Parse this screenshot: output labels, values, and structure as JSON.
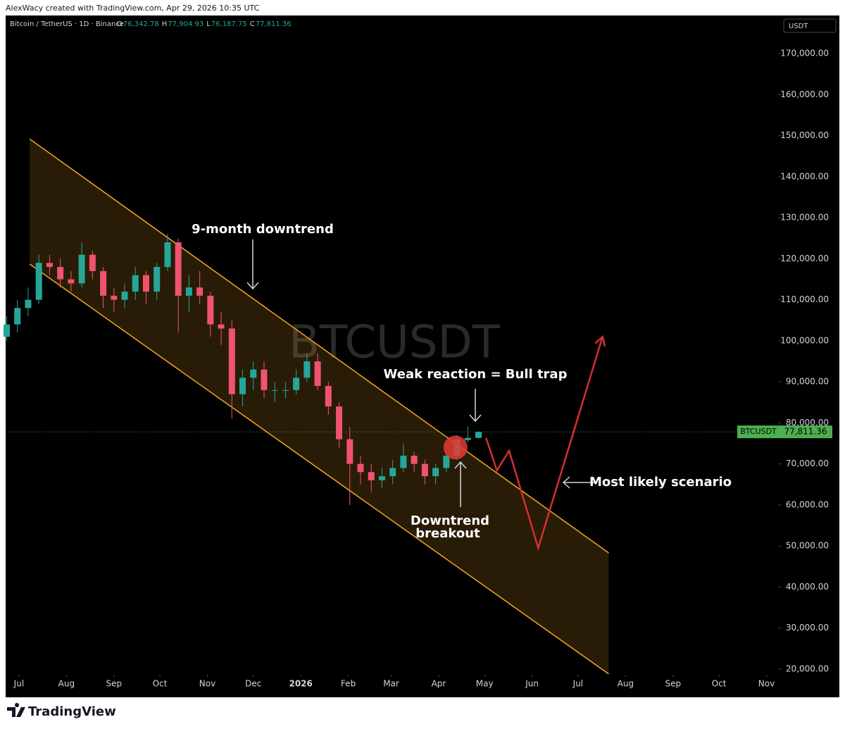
{
  "header": {
    "credit": "AlexWacy created with TradingView.com, Apr 29, 2026 10:35 UTC"
  },
  "chart_data": {
    "type": "candlestick",
    "title": "Bitcoin / TetherUS · 1D · Binance",
    "ohlc": [
      {
        "key": "O",
        "value": "76,342.78"
      },
      {
        "key": "H",
        "value": "77,904.93"
      },
      {
        "key": "L",
        "value": "76,187.75"
      },
      {
        "key": "C",
        "value": "77,811.36"
      }
    ],
    "currency": "USDT",
    "watermark": "BTCUSDT",
    "up_color": "#26a69a",
    "down_color": "#ef5370",
    "x": [
      -8,
      -1,
      6,
      13,
      20,
      27,
      34,
      41,
      48,
      55,
      62,
      69,
      76,
      83,
      90,
      97,
      104,
      111,
      118,
      125,
      132,
      139,
      146,
      153,
      160,
      167,
      174,
      181,
      188,
      195,
      202,
      209,
      216,
      223,
      230,
      237,
      244,
      251,
      258,
      265,
      272,
      279,
      286,
      293,
      300
    ],
    "open": [
      101000,
      104000,
      108000,
      110000,
      119000,
      118000,
      115000,
      114000,
      121000,
      117000,
      111000,
      110000,
      112000,
      116000,
      112000,
      118000,
      124000,
      111000,
      113000,
      111000,
      104000,
      103000,
      87000,
      91000,
      93000,
      88000,
      88000,
      88000,
      91000,
      95000,
      89000,
      84000,
      76000,
      70000,
      68000,
      66000,
      67000,
      69000,
      72000,
      70000,
      67000,
      69000,
      72000,
      75800,
      76342.78
    ],
    "high": [
      106000,
      110000,
      113000,
      121000,
      121000,
      120000,
      117000,
      124000,
      122000,
      118000,
      113000,
      114000,
      118000,
      117000,
      119000,
      126000,
      125000,
      116000,
      117000,
      112000,
      107000,
      105000,
      93000,
      95000,
      95000,
      90000,
      90000,
      93000,
      97000,
      97000,
      90000,
      85000,
      79000,
      72000,
      70000,
      69000,
      71000,
      75000,
      73000,
      71000,
      70000,
      73000,
      77000,
      79100,
      77904.93
    ],
    "low": [
      100000,
      102000,
      106000,
      109000,
      116000,
      113000,
      112000,
      113000,
      115000,
      108000,
      107000,
      108000,
      110000,
      109000,
      110000,
      117000,
      102000,
      107000,
      109000,
      101000,
      99000,
      81000,
      84000,
      88000,
      86000,
      85000,
      86000,
      87000,
      90000,
      88000,
      82000,
      74000,
      60000,
      65000,
      63000,
      64000,
      65000,
      68000,
      68000,
      65000,
      65000,
      68000,
      71000,
      75200,
      76187.75
    ],
    "close": [
      104000,
      108000,
      110000,
      119000,
      118000,
      115000,
      114000,
      121000,
      117000,
      111000,
      110000,
      112000,
      116000,
      112000,
      118000,
      124000,
      111000,
      113000,
      111000,
      104000,
      103000,
      87000,
      91000,
      93000,
      88000,
      88000,
      88000,
      91000,
      95000,
      89000,
      84000,
      76000,
      70000,
      68000,
      66000,
      67000,
      69000,
      72000,
      70000,
      67000,
      69000,
      72000,
      76000,
      76342.78,
      77811.36
    ],
    "xlim": [
      -8.7,
      495.6
    ],
    "xticks": [
      {
        "value": 0,
        "label": "Jul"
      },
      {
        "value": 31,
        "label": "Aug"
      },
      {
        "value": 62,
        "label": "Sep"
      },
      {
        "value": 92,
        "label": "Oct"
      },
      {
        "value": 123,
        "label": "Nov"
      },
      {
        "value": 153,
        "label": "Dec"
      },
      {
        "value": 184,
        "label": "2026"
      },
      {
        "value": 215,
        "label": "Feb"
      },
      {
        "value": 243,
        "label": "Mar"
      },
      {
        "value": 274,
        "label": "Apr"
      },
      {
        "value": 304,
        "label": "May"
      },
      {
        "value": 335,
        "label": "Jun"
      },
      {
        "value": 365,
        "label": "Jul"
      },
      {
        "value": 396,
        "label": "Aug"
      },
      {
        "value": 427,
        "label": "Sep"
      },
      {
        "value": 457,
        "label": "Oct"
      },
      {
        "value": 488,
        "label": "Nov"
      }
    ],
    "ylim": [
      18600,
      179300
    ],
    "yticks": [
      {
        "value": 20000,
        "label": "20,000.00"
      },
      {
        "value": 30000,
        "label": "30,000.00"
      },
      {
        "value": 40000,
        "label": "40,000.00"
      },
      {
        "value": 50000,
        "label": "50,000.00"
      },
      {
        "value": 60000,
        "label": "60,000.00"
      },
      {
        "value": 70000,
        "label": "70,000.00"
      },
      {
        "value": 80000,
        "label": "80,000.00"
      },
      {
        "value": 90000,
        "label": "90,000.00"
      },
      {
        "value": 100000,
        "label": "100,000.00"
      },
      {
        "value": 110000,
        "label": "110,000.00"
      },
      {
        "value": 120000,
        "label": "120,000.00"
      },
      {
        "value": 130000,
        "label": "130,000.00"
      },
      {
        "value": 140000,
        "label": "140,000.00"
      },
      {
        "value": 150000,
        "label": "150,000.00"
      },
      {
        "value": 160000,
        "label": "160,000.00"
      },
      {
        "value": 170000,
        "label": "170,000.00"
      }
    ],
    "last_price": {
      "symbol": "BTCUSDT",
      "value": 77811.36,
      "label": "77,811.36"
    },
    "channel": {
      "x": [
        7,
        385
      ],
      "upper": [
        149200,
        48300
      ],
      "lower": [
        118700,
        18800
      ],
      "color": "#f5a623"
    },
    "projection": {
      "x": [
        305,
        312,
        320,
        339,
        381
      ],
      "y": [
        76300,
        68400,
        73200,
        49500,
        101000
      ],
      "color": "#d32f2f"
    },
    "marker": {
      "x": 285,
      "y": 74000,
      "color": "#e53935"
    },
    "annotations": [
      "9-month downtrend",
      "Weak reaction = Bull trap",
      "Downtrend",
      "breakout",
      "Most likely scenario"
    ]
  },
  "footer": {
    "brand": "TradingView"
  }
}
